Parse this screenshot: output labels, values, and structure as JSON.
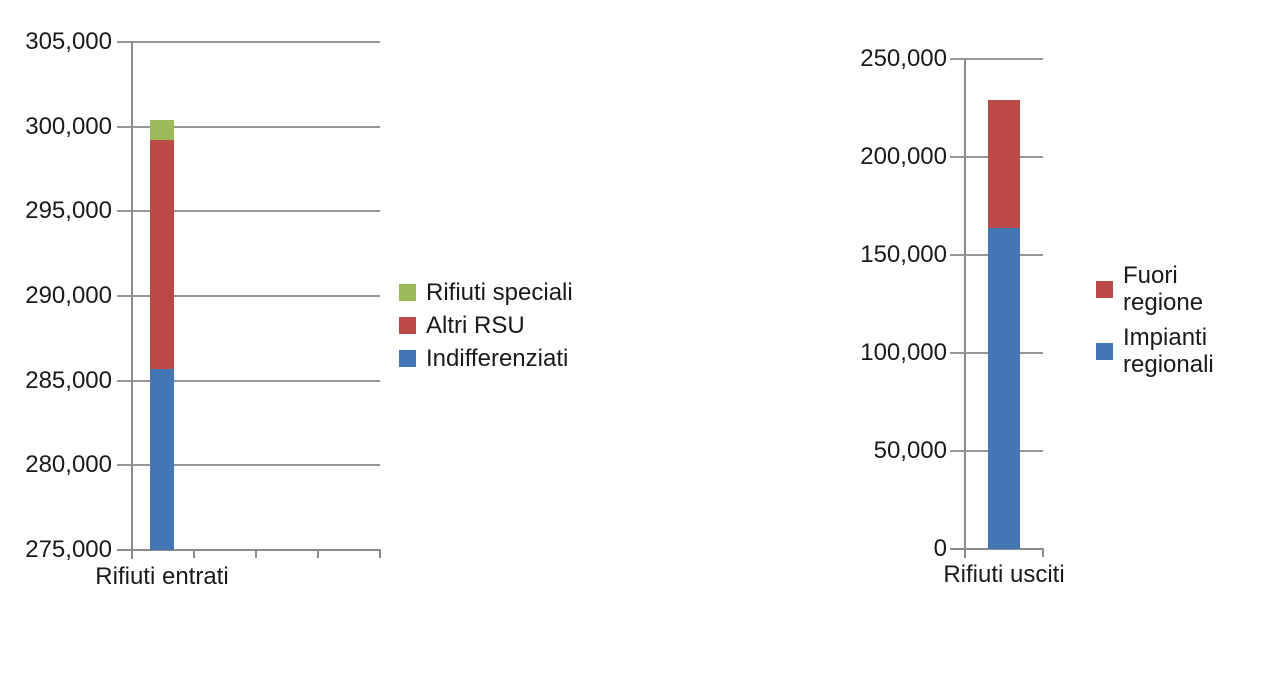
{
  "page": {
    "background": "#ffffff"
  },
  "palette": {
    "blue": "#4377B4",
    "red": "#BB4A47",
    "green": "#9BBA59",
    "grid": "#979797",
    "axis": "#8C8C8C",
    "text": "#1a1a1a"
  },
  "chart_data": [
    {
      "type": "bar",
      "stacked": true,
      "title": "",
      "categories": [
        "Rifiuti entrati"
      ],
      "series": [
        {
          "name": "Indifferenziati",
          "color": "#4377B4",
          "values": [
            285700
          ]
        },
        {
          "name": "Altri RSU",
          "color": "#BB4A47",
          "values": [
            13500
          ]
        },
        {
          "name": "Rifiuti speciali",
          "color": "#9BBA59",
          "values": [
            1200
          ]
        }
      ],
      "ylim": [
        275000,
        305000
      ],
      "ytick_values": [
        275000,
        280000,
        285000,
        290000,
        295000,
        300000,
        305000
      ],
      "ytick_labels": [
        "275,000",
        "280,000",
        "285,000",
        "290,000",
        "295,000",
        "300,000",
        "305,000"
      ],
      "grid": true,
      "legend_position": "right"
    },
    {
      "type": "bar",
      "stacked": true,
      "title": "",
      "categories": [
        "Rifiuti usciti"
      ],
      "series": [
        {
          "name": "Impianti regionali",
          "color": "#4377B4",
          "values": [
            164000
          ]
        },
        {
          "name": "Fuori regione",
          "color": "#BB4A47",
          "values": [
            65000
          ]
        }
      ],
      "ylim": [
        0,
        250000
      ],
      "ytick_values": [
        0,
        50000,
        100000,
        150000,
        200000,
        250000
      ],
      "ytick_labels": [
        "0",
        "50,000",
        "100,000",
        "150,000",
        "200,000",
        "250,000"
      ],
      "grid": true,
      "legend_position": "right"
    }
  ]
}
